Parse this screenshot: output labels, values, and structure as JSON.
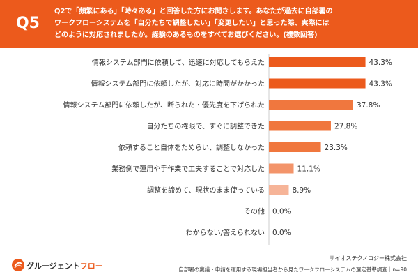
{
  "header": {
    "question_number": "Q5",
    "question_lines": [
      "Q2で「頻繁にある」「時々ある」と回答した方にお聞きします。あなたが過去に自部署の",
      "ワークフローシステムを「自分たちで調整したい」「変更したい」と思った際、実際には",
      "どのように対応されましたか。経験のあるものをすべてお選びください。(複数回答)"
    ]
  },
  "chart_data": {
    "type": "bar",
    "orientation": "horizontal",
    "categories": [
      "情報システム部門に依頼して、迅速に対応してもらえた",
      "情報システム部門に依頼したが、対応に時間がかかった",
      "情報システム部門に依頼したが、断られた・優先度を下げられた",
      "自分たちの権限で、すぐに調整できた",
      "依頼すること自体をためらい、調整しなかった",
      "業務側で運用や手作業で工夫することで対応した",
      "調整を諦めて、現状のまま使っている",
      "その他",
      "わからない/答えられない"
    ],
    "values": [
      43.3,
      43.3,
      37.8,
      27.8,
      23.3,
      11.1,
      8.9,
      0.0,
      0.0
    ],
    "value_labels": [
      "43.3%",
      "43.3%",
      "37.8%",
      "27.8%",
      "23.3%",
      "11.1%",
      "8.9%",
      "0.0%",
      "0.0%"
    ],
    "xlim": [
      0,
      50
    ],
    "grid": false,
    "legend": "none",
    "title": "",
    "xlabel": "",
    "ylabel": "",
    "colors": {
      "top": "#ec5a1c",
      "high": "#f0773e",
      "mid": "#f3946a",
      "low": "#f6b498"
    }
  },
  "footer": {
    "logo_prefix": "グルージェント",
    "logo_accent": "フロー",
    "company": "サイオステクノロジー株式会社",
    "source": "自部署の稟議・申請を運用する現場担当者から見たワークフローシステムの選定基準調査｜n=90"
  },
  "colors": {
    "header_bg": "#ec5a1c",
    "header_text": "#ffffff",
    "text": "#333333",
    "axis": "#cccccc"
  }
}
